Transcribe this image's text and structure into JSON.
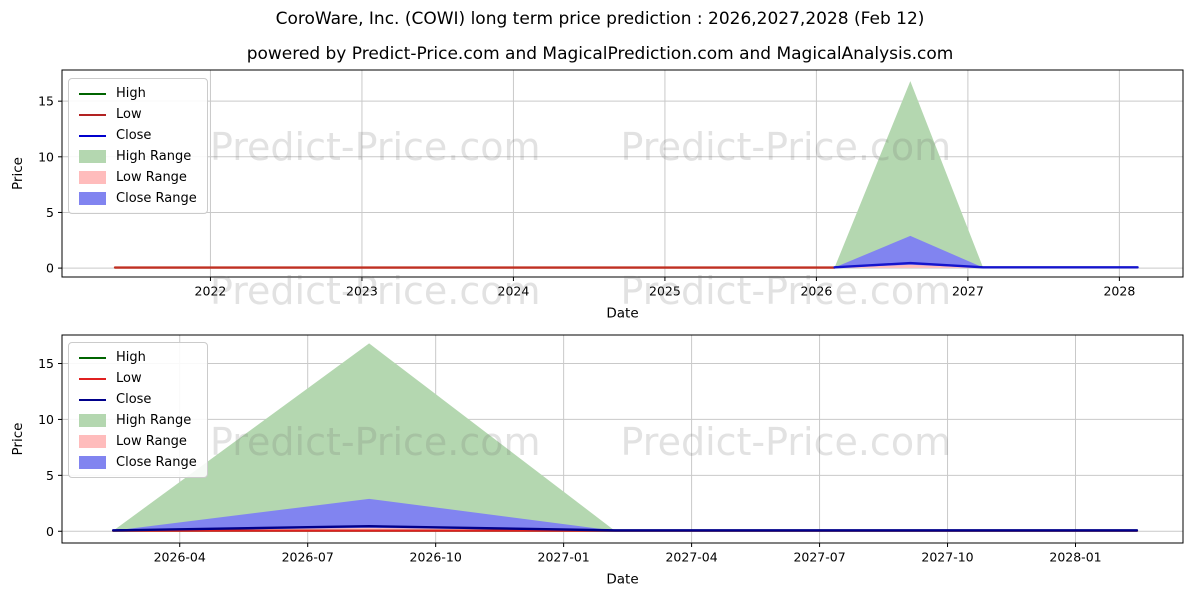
{
  "header": {
    "title": "CoroWare, Inc. (COWI) long term price prediction : 2026,2027,2028 (Feb 12)",
    "subtitle": "powered by Predict-Price.com and MagicalPrediction.com and MagicalAnalysis.com"
  },
  "watermark": {
    "text": "Predict-Price.com",
    "color": "#e2e2e2"
  },
  "chart_data": [
    {
      "type": "area",
      "name": "yearly-overview",
      "xlabel": "Date",
      "ylabel": "Price",
      "grid": true,
      "legend_position": "upper left",
      "xlim": [
        2021.02,
        2028.42
      ],
      "ylim": [
        -0.8,
        17.8
      ],
      "x_ticks": [
        {
          "v": 2022,
          "label": "2022"
        },
        {
          "v": 2023,
          "label": "2023"
        },
        {
          "v": 2024,
          "label": "2024"
        },
        {
          "v": 2025,
          "label": "2025"
        },
        {
          "v": 2026,
          "label": "2026"
        },
        {
          "v": 2027,
          "label": "2027"
        },
        {
          "v": 2028,
          "label": "2028"
        }
      ],
      "y_ticks": [
        {
          "v": 0,
          "label": "0"
        },
        {
          "v": 5,
          "label": "5"
        },
        {
          "v": 10,
          "label": "10"
        },
        {
          "v": 15,
          "label": "15"
        }
      ],
      "series": [
        {
          "name": "High Range",
          "kind": "area",
          "color": "#b4d7b0",
          "points": [
            [
              2026.12,
              0.05
            ],
            [
              2026.62,
              16.8
            ],
            [
              2027.1,
              0.05
            ]
          ]
        },
        {
          "name": "Close Range",
          "kind": "area",
          "color": "#8184f0",
          "points": [
            [
              2026.12,
              0.05
            ],
            [
              2026.62,
              2.9
            ],
            [
              2027.1,
              0.05
            ]
          ]
        },
        {
          "name": "Low Range",
          "kind": "area",
          "color": "#ffbcbc",
          "points": [
            [
              2026.12,
              0.02
            ],
            [
              2026.62,
              0.3
            ],
            [
              2027.1,
              0.02
            ]
          ]
        },
        {
          "name": "Low",
          "kind": "line",
          "color": "#c03022",
          "width": 2.4,
          "points": [
            [
              2021.37,
              0.05
            ],
            [
              2026.12,
              0.05
            ]
          ]
        },
        {
          "name": "Close",
          "kind": "line",
          "color": "#1515cd",
          "width": 2.4,
          "points": [
            [
              2026.12,
              0.07
            ],
            [
              2026.62,
              0.45
            ],
            [
              2027.1,
              0.07
            ],
            [
              2028.12,
              0.07
            ]
          ]
        }
      ],
      "legend": [
        {
          "label": "High",
          "kind": "line",
          "color": "#006400"
        },
        {
          "label": "Low",
          "kind": "line",
          "color": "#b22222"
        },
        {
          "label": "Close",
          "kind": "line",
          "color": "#0000cd"
        },
        {
          "label": "High Range",
          "kind": "patch",
          "color": "#b4d7b0"
        },
        {
          "label": "Low Range",
          "kind": "patch",
          "color": "#ffbcbc"
        },
        {
          "label": "Close Range",
          "kind": "patch",
          "color": "#8184f0"
        }
      ]
    },
    {
      "type": "area",
      "name": "prediction-detail",
      "xlabel": "Date",
      "ylabel": "Price",
      "grid": true,
      "legend_position": "upper left",
      "xlim": [
        2026.02,
        2028.21
      ],
      "ylim": [
        -1.05,
        17.55
      ],
      "x_ticks": [
        {
          "v": 2026.25,
          "label": "2026-04"
        },
        {
          "v": 2026.5,
          "label": "2026-07"
        },
        {
          "v": 2026.75,
          "label": "2026-10"
        },
        {
          "v": 2027.0,
          "label": "2027-01"
        },
        {
          "v": 2027.25,
          "label": "2027-04"
        },
        {
          "v": 2027.5,
          "label": "2027-07"
        },
        {
          "v": 2027.75,
          "label": "2027-10"
        },
        {
          "v": 2028.0,
          "label": "2028-01"
        }
      ],
      "y_ticks": [
        {
          "v": 0,
          "label": "0"
        },
        {
          "v": 5,
          "label": "5"
        },
        {
          "v": 10,
          "label": "10"
        },
        {
          "v": 15,
          "label": "15"
        }
      ],
      "series": [
        {
          "name": "High Range",
          "kind": "area",
          "color": "#b4d7b0",
          "points": [
            [
              2026.12,
              0.05
            ],
            [
              2026.62,
              16.8
            ],
            [
              2027.1,
              0.05
            ]
          ]
        },
        {
          "name": "Close Range",
          "kind": "area",
          "color": "#8184f0",
          "points": [
            [
              2026.12,
              0.05
            ],
            [
              2026.62,
              2.9
            ],
            [
              2027.1,
              0.05
            ]
          ]
        },
        {
          "name": "Low Range",
          "kind": "area",
          "color": "#ffbcbc",
          "points": [
            [
              2026.12,
              0.02
            ],
            [
              2026.62,
              0.3
            ],
            [
              2027.1,
              0.02
            ]
          ]
        },
        {
          "name": "High",
          "kind": "line",
          "color": "#006400",
          "width": 2.2,
          "points": [
            [
              2026.12,
              0.05
            ],
            [
              2028.12,
              0.05
            ]
          ]
        },
        {
          "name": "Low",
          "kind": "line",
          "color": "#e02020",
          "width": 2.2,
          "points": [
            [
              2026.12,
              0.05
            ],
            [
              2028.12,
              0.05
            ]
          ]
        },
        {
          "name": "Close",
          "kind": "line",
          "color": "#00008b",
          "width": 2.4,
          "points": [
            [
              2026.12,
              0.08
            ],
            [
              2026.62,
              0.45
            ],
            [
              2027.1,
              0.08
            ],
            [
              2028.12,
              0.08
            ]
          ]
        }
      ],
      "legend": [
        {
          "label": "High",
          "kind": "line",
          "color": "#006400"
        },
        {
          "label": "Low",
          "kind": "line",
          "color": "#e02020"
        },
        {
          "label": "Close",
          "kind": "line",
          "color": "#00008b"
        },
        {
          "label": "High Range",
          "kind": "patch",
          "color": "#b4d7b0"
        },
        {
          "label": "Low Range",
          "kind": "patch",
          "color": "#ffbcbc"
        },
        {
          "label": "Close Range",
          "kind": "patch",
          "color": "#8184f0"
        }
      ]
    }
  ]
}
